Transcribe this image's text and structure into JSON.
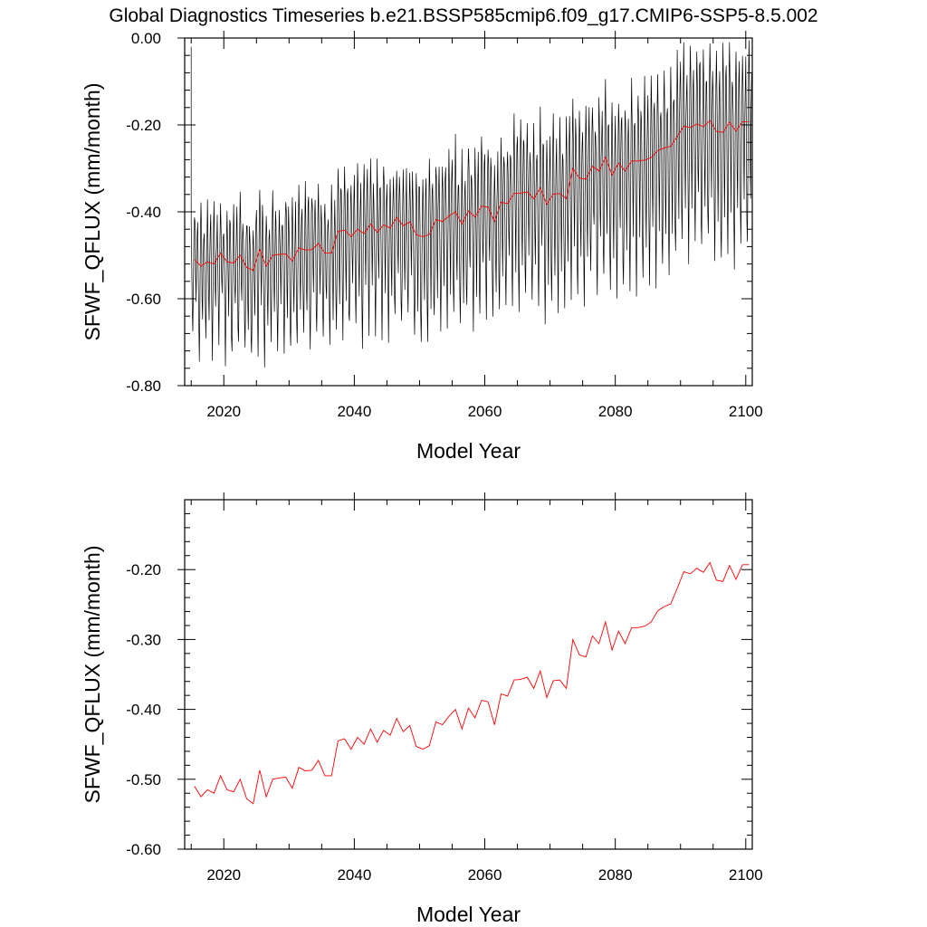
{
  "title": "Global Diagnostics Timeseries b.e21.BSSP585cmip6.f09_g17.CMIP6-SSP5-8.5.002",
  "colors": {
    "monthly": "#000000",
    "annual": "#ff0000",
    "axes": "#000000"
  },
  "chart_data": [
    {
      "type": "line",
      "xlabel": "Model Year",
      "ylabel": "SFWF_QFLUX (mm/month)",
      "xlim": [
        2014,
        2101
      ],
      "ylim": [
        -0.8,
        0.0
      ],
      "xticks": [
        2020,
        2040,
        2060,
        2080,
        2100
      ],
      "xtick_labels": [
        "2020",
        "2040",
        "2060",
        "2080",
        "2100"
      ],
      "yticks": [
        -0.8,
        -0.6,
        -0.4,
        -0.2,
        0.0
      ],
      "ytick_labels": [
        "-0.80",
        "-0.60",
        "-0.40",
        "-0.20",
        "0.00"
      ],
      "grid": false,
      "series": [
        {
          "color": "#000000",
          "monthly_cycle": [
            -0.42,
            -0.5,
            -0.63,
            -0.7,
            -0.58,
            -0.45,
            -0.38,
            -0.44,
            -0.55,
            -0.62,
            -0.5,
            -0.43
          ],
          "annual_mean_from": "annual_series",
          "start": 2015,
          "end": 2101
        },
        {
          "color": "#ff0000",
          "x": [
            2015,
            2016,
            2017,
            2018,
            2019,
            2020,
            2021,
            2022,
            2023,
            2024,
            2025,
            2026,
            2027,
            2028,
            2029,
            2030,
            2031,
            2032,
            2033,
            2034,
            2035,
            2036,
            2037,
            2038,
            2039,
            2040,
            2041,
            2042,
            2043,
            2044,
            2045,
            2046,
            2047,
            2048,
            2049,
            2050,
            2051,
            2052,
            2053,
            2054,
            2055,
            2056,
            2057,
            2058,
            2059,
            2060,
            2061,
            2062,
            2063,
            2064,
            2065,
            2066,
            2067,
            2068,
            2069,
            2070,
            2071,
            2072,
            2073,
            2074,
            2075,
            2076,
            2077,
            2078,
            2079,
            2080,
            2081,
            2082,
            2083,
            2084,
            2085,
            2086,
            2087,
            2088,
            2089,
            2090,
            2091,
            2092,
            2093,
            2094,
            2095,
            2096,
            2097,
            2098,
            2099,
            2100
          ],
          "y": [
            -0.51,
            -0.525,
            -0.515,
            -0.52,
            -0.495,
            -0.515,
            -0.518,
            -0.5,
            -0.528,
            -0.535,
            -0.487,
            -0.525,
            -0.5,
            -0.498,
            -0.497,
            -0.513,
            -0.483,
            -0.488,
            -0.487,
            -0.473,
            -0.495,
            -0.495,
            -0.445,
            -0.442,
            -0.457,
            -0.44,
            -0.45,
            -0.428,
            -0.447,
            -0.43,
            -0.437,
            -0.413,
            -0.432,
            -0.423,
            -0.453,
            -0.457,
            -0.452,
            -0.418,
            -0.422,
            -0.41,
            -0.4,
            -0.428,
            -0.398,
            -0.412,
            -0.387,
            -0.389,
            -0.422,
            -0.378,
            -0.381,
            -0.358,
            -0.357,
            -0.354,
            -0.37,
            -0.345,
            -0.383,
            -0.359,
            -0.358,
            -0.37,
            -0.3,
            -0.322,
            -0.325,
            -0.295,
            -0.306,
            -0.275,
            -0.315,
            -0.288,
            -0.306,
            -0.283,
            -0.283,
            -0.281,
            -0.275,
            -0.259,
            -0.253,
            -0.249,
            -0.227,
            -0.203,
            -0.206,
            -0.198,
            -0.204,
            -0.19,
            -0.215,
            -0.217,
            -0.194,
            -0.214,
            -0.193,
            -0.193
          ]
        }
      ]
    },
    {
      "type": "line",
      "xlabel": "Model Year",
      "ylabel": "SFWF_QFLUX (mm/month)",
      "xlim": [
        2014,
        2101
      ],
      "ylim": [
        -0.6,
        -0.1
      ],
      "xticks": [
        2020,
        2040,
        2060,
        2080,
        2100
      ],
      "xtick_labels": [
        "2020",
        "2040",
        "2060",
        "2080",
        "2100"
      ],
      "yticks": [
        -0.6,
        -0.5,
        -0.4,
        -0.3,
        -0.2
      ],
      "ytick_labels": [
        "-0.60",
        "-0.50",
        "-0.40",
        "-0.30",
        "-0.20"
      ],
      "grid": false,
      "series": [
        {
          "color": "#ff0000",
          "same_as": "annual_series"
        }
      ]
    }
  ]
}
